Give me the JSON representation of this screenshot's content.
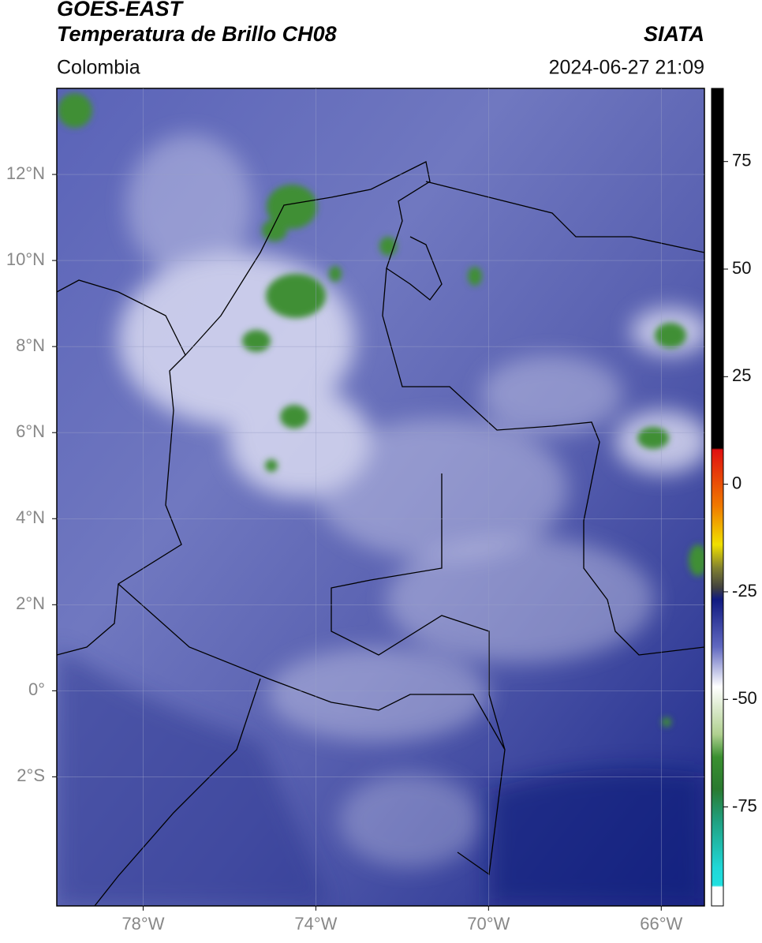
{
  "header": {
    "title": "GOES-EAST",
    "subtitle": "Temperatura de Brillo CH08",
    "source": "SIATA",
    "region": "Colombia",
    "datetime": "2024-06-27 21:09"
  },
  "map": {
    "xlim": [
      -80,
      -65
    ],
    "ylim": [
      -5,
      14
    ],
    "xticks": [
      {
        "value": -78,
        "label": "78°W"
      },
      {
        "value": -74,
        "label": "74°W"
      },
      {
        "value": -70,
        "label": "70°W"
      },
      {
        "value": -66,
        "label": "66°W"
      }
    ],
    "yticks": [
      {
        "value": 12,
        "label": "12°N"
      },
      {
        "value": 10,
        "label": "10°N"
      },
      {
        "value": 8,
        "label": "8°N"
      },
      {
        "value": 6,
        "label": "6°N"
      },
      {
        "value": 4,
        "label": "4°N"
      },
      {
        "value": 2,
        "label": "2°N"
      },
      {
        "value": 0,
        "label": "0°"
      },
      {
        "value": -2,
        "label": "2°S"
      }
    ],
    "grid": true
  },
  "colorbar": {
    "lim": [
      -98,
      92
    ],
    "ticks": [
      75,
      50,
      25,
      0,
      -25,
      -50,
      -75
    ]
  }
}
